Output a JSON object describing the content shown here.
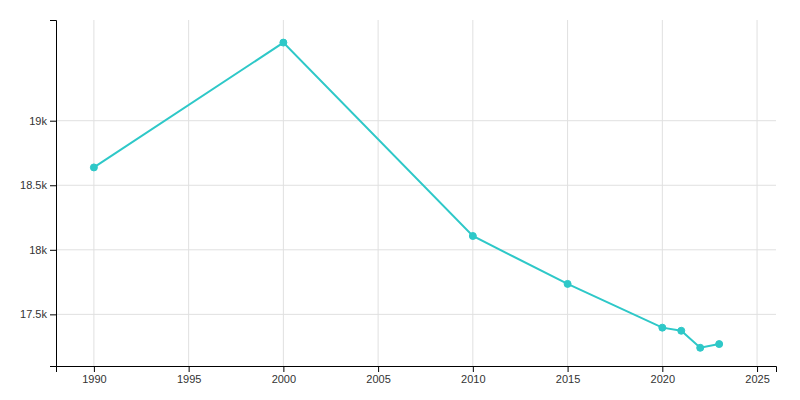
{
  "chart_data": {
    "type": "line",
    "x": [
      1990,
      2000,
      2010,
      2015,
      2020,
      2021,
      2022,
      2023
    ],
    "values": [
      18638,
      19605,
      18107,
      17736,
      17397,
      17373,
      17241,
      17270
    ],
    "color": "#2EC8C8",
    "marker": "circle",
    "xlim": [
      1988,
      2026
    ],
    "ylim": [
      17100,
      19780
    ],
    "xticks": [
      1990,
      1995,
      2000,
      2005,
      2010,
      2015,
      2020,
      2025
    ],
    "yticks": [
      {
        "value": 17500,
        "label": "17.5k"
      },
      {
        "value": 18000,
        "label": "18k"
      },
      {
        "value": 18500,
        "label": "18.5k"
      },
      {
        "value": 19000,
        "label": "19k"
      }
    ],
    "grid": true
  }
}
